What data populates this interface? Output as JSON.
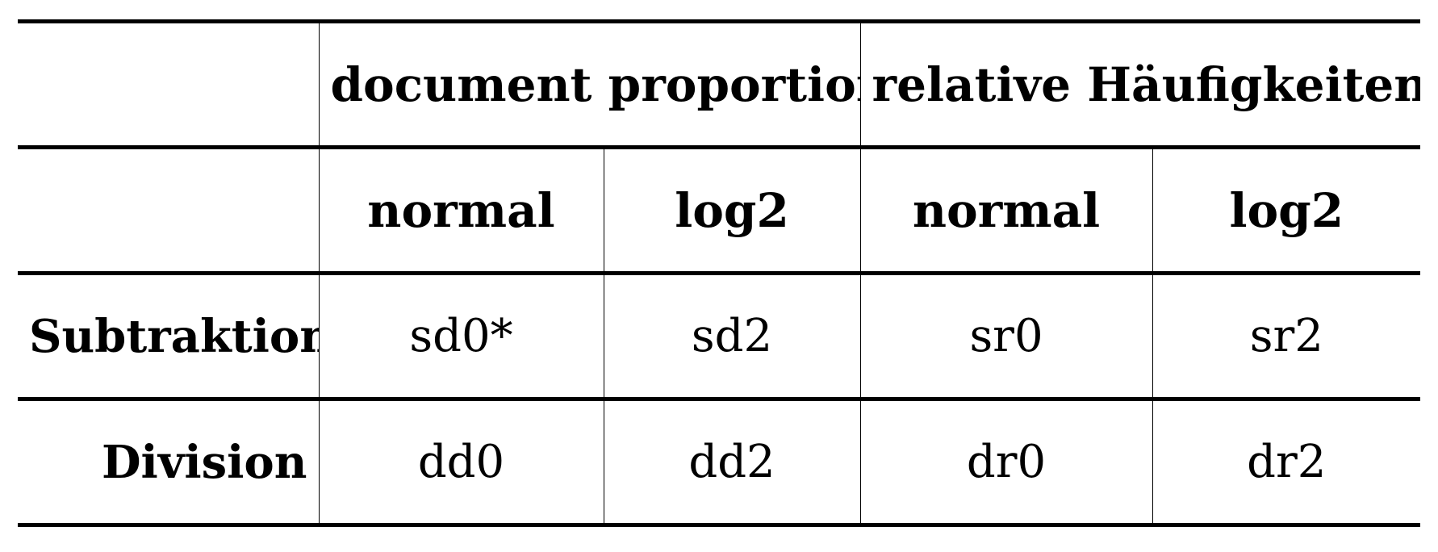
{
  "table": {
    "group_headers": [
      {
        "label": "document proportions"
      },
      {
        "label": "relative Häufigkeiten"
      }
    ],
    "sub_headers": [
      "normal",
      "log2",
      "normal",
      "log2"
    ],
    "rows": [
      {
        "label": "Subtraktion",
        "cells": [
          "sd0*",
          "sd2",
          "sr0",
          "sr2"
        ]
      },
      {
        "label": "Division",
        "cells": [
          "dd0",
          "dd2",
          "dr0",
          "dr2"
        ]
      }
    ]
  }
}
